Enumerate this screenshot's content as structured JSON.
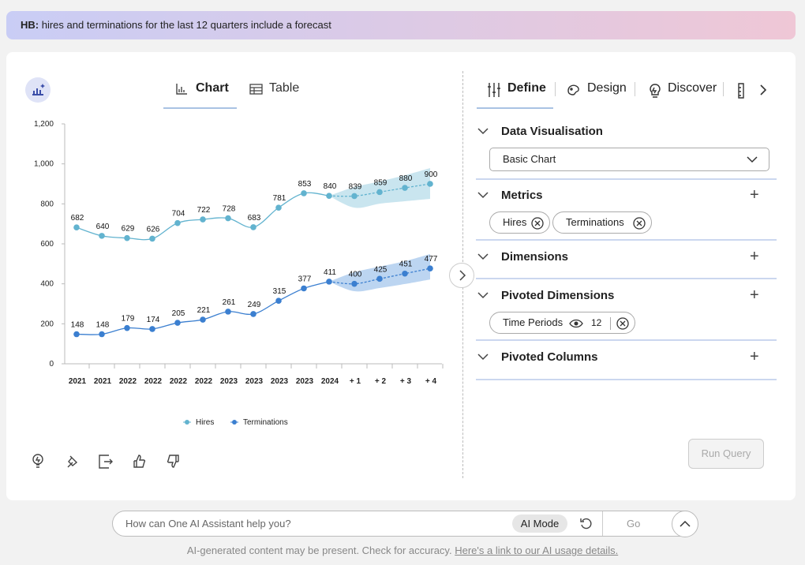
{
  "query_banner": {
    "prefix": "HB:",
    "text": "hires and terminations for the last 12 quarters include a forecast"
  },
  "view_tabs": [
    "Chart",
    "Table"
  ],
  "chart_data": {
    "type": "line",
    "categories": [
      "2021",
      "2021",
      "2022",
      "2022",
      "2022",
      "2022",
      "2023",
      "2023",
      "2023",
      "2023",
      "2024",
      "+ 1",
      "+ 2",
      "+ 3",
      "+ 4"
    ],
    "series": [
      {
        "name": "Hires",
        "color": "#62b3cf",
        "values": [
          682,
          640,
          629,
          626,
          704,
          722,
          728,
          683,
          781,
          853,
          840,
          839,
          859,
          880,
          900
        ],
        "band": {
          "color": "#c9e5ef",
          "lower": [
            null,
            null,
            null,
            null,
            null,
            null,
            null,
            null,
            null,
            null,
            840,
            781,
            801,
            813,
            825
          ],
          "upper": [
            null,
            null,
            null,
            null,
            null,
            null,
            null,
            null,
            null,
            null,
            840,
            884,
            912,
            943,
            979
          ]
        }
      },
      {
        "name": "Terminations",
        "color": "#3b7fd0",
        "values": [
          148,
          148,
          179,
          174,
          205,
          221,
          261,
          249,
          315,
          377,
          411,
          400,
          425,
          451,
          477
        ],
        "band": {
          "color": "#bcd5f1",
          "lower": [
            null,
            null,
            null,
            null,
            null,
            null,
            null,
            null,
            null,
            null,
            411,
            363,
            379,
            399,
            422
          ],
          "upper": [
            null,
            null,
            null,
            null,
            null,
            null,
            null,
            null,
            null,
            null,
            411,
            458,
            486,
            513,
            549
          ]
        }
      }
    ],
    "ylim": [
      0,
      1200
    ],
    "yticks": [
      0,
      200,
      400,
      600,
      800,
      {
        "value": 1000,
        "label": "1,000"
      },
      {
        "value": 1200,
        "label": "1,200"
      }
    ],
    "grid": false,
    "legend": "bottom"
  },
  "panel_tabs": [
    "Define",
    "Design",
    "Discover"
  ],
  "sections": [
    {
      "title": "Data Visualisation",
      "select": "Basic Chart"
    },
    {
      "title": "Metrics",
      "chips": [
        "Hires",
        "Terminations"
      ]
    },
    {
      "title": "Dimensions"
    },
    {
      "title": "Pivoted Dimensions",
      "chips": [
        {
          "label": "Time Periods",
          "count": "12"
        }
      ]
    },
    {
      "title": "Pivoted Columns"
    }
  ],
  "run_button": "Run Query",
  "assistant": {
    "placeholder": "How can One AI Assistant help you?",
    "mode": "AI Mode",
    "go": "Go"
  },
  "footer": {
    "text": "AI-generated content may be present. Check for accuracy.",
    "link": "Here's a link to our AI usage details."
  }
}
